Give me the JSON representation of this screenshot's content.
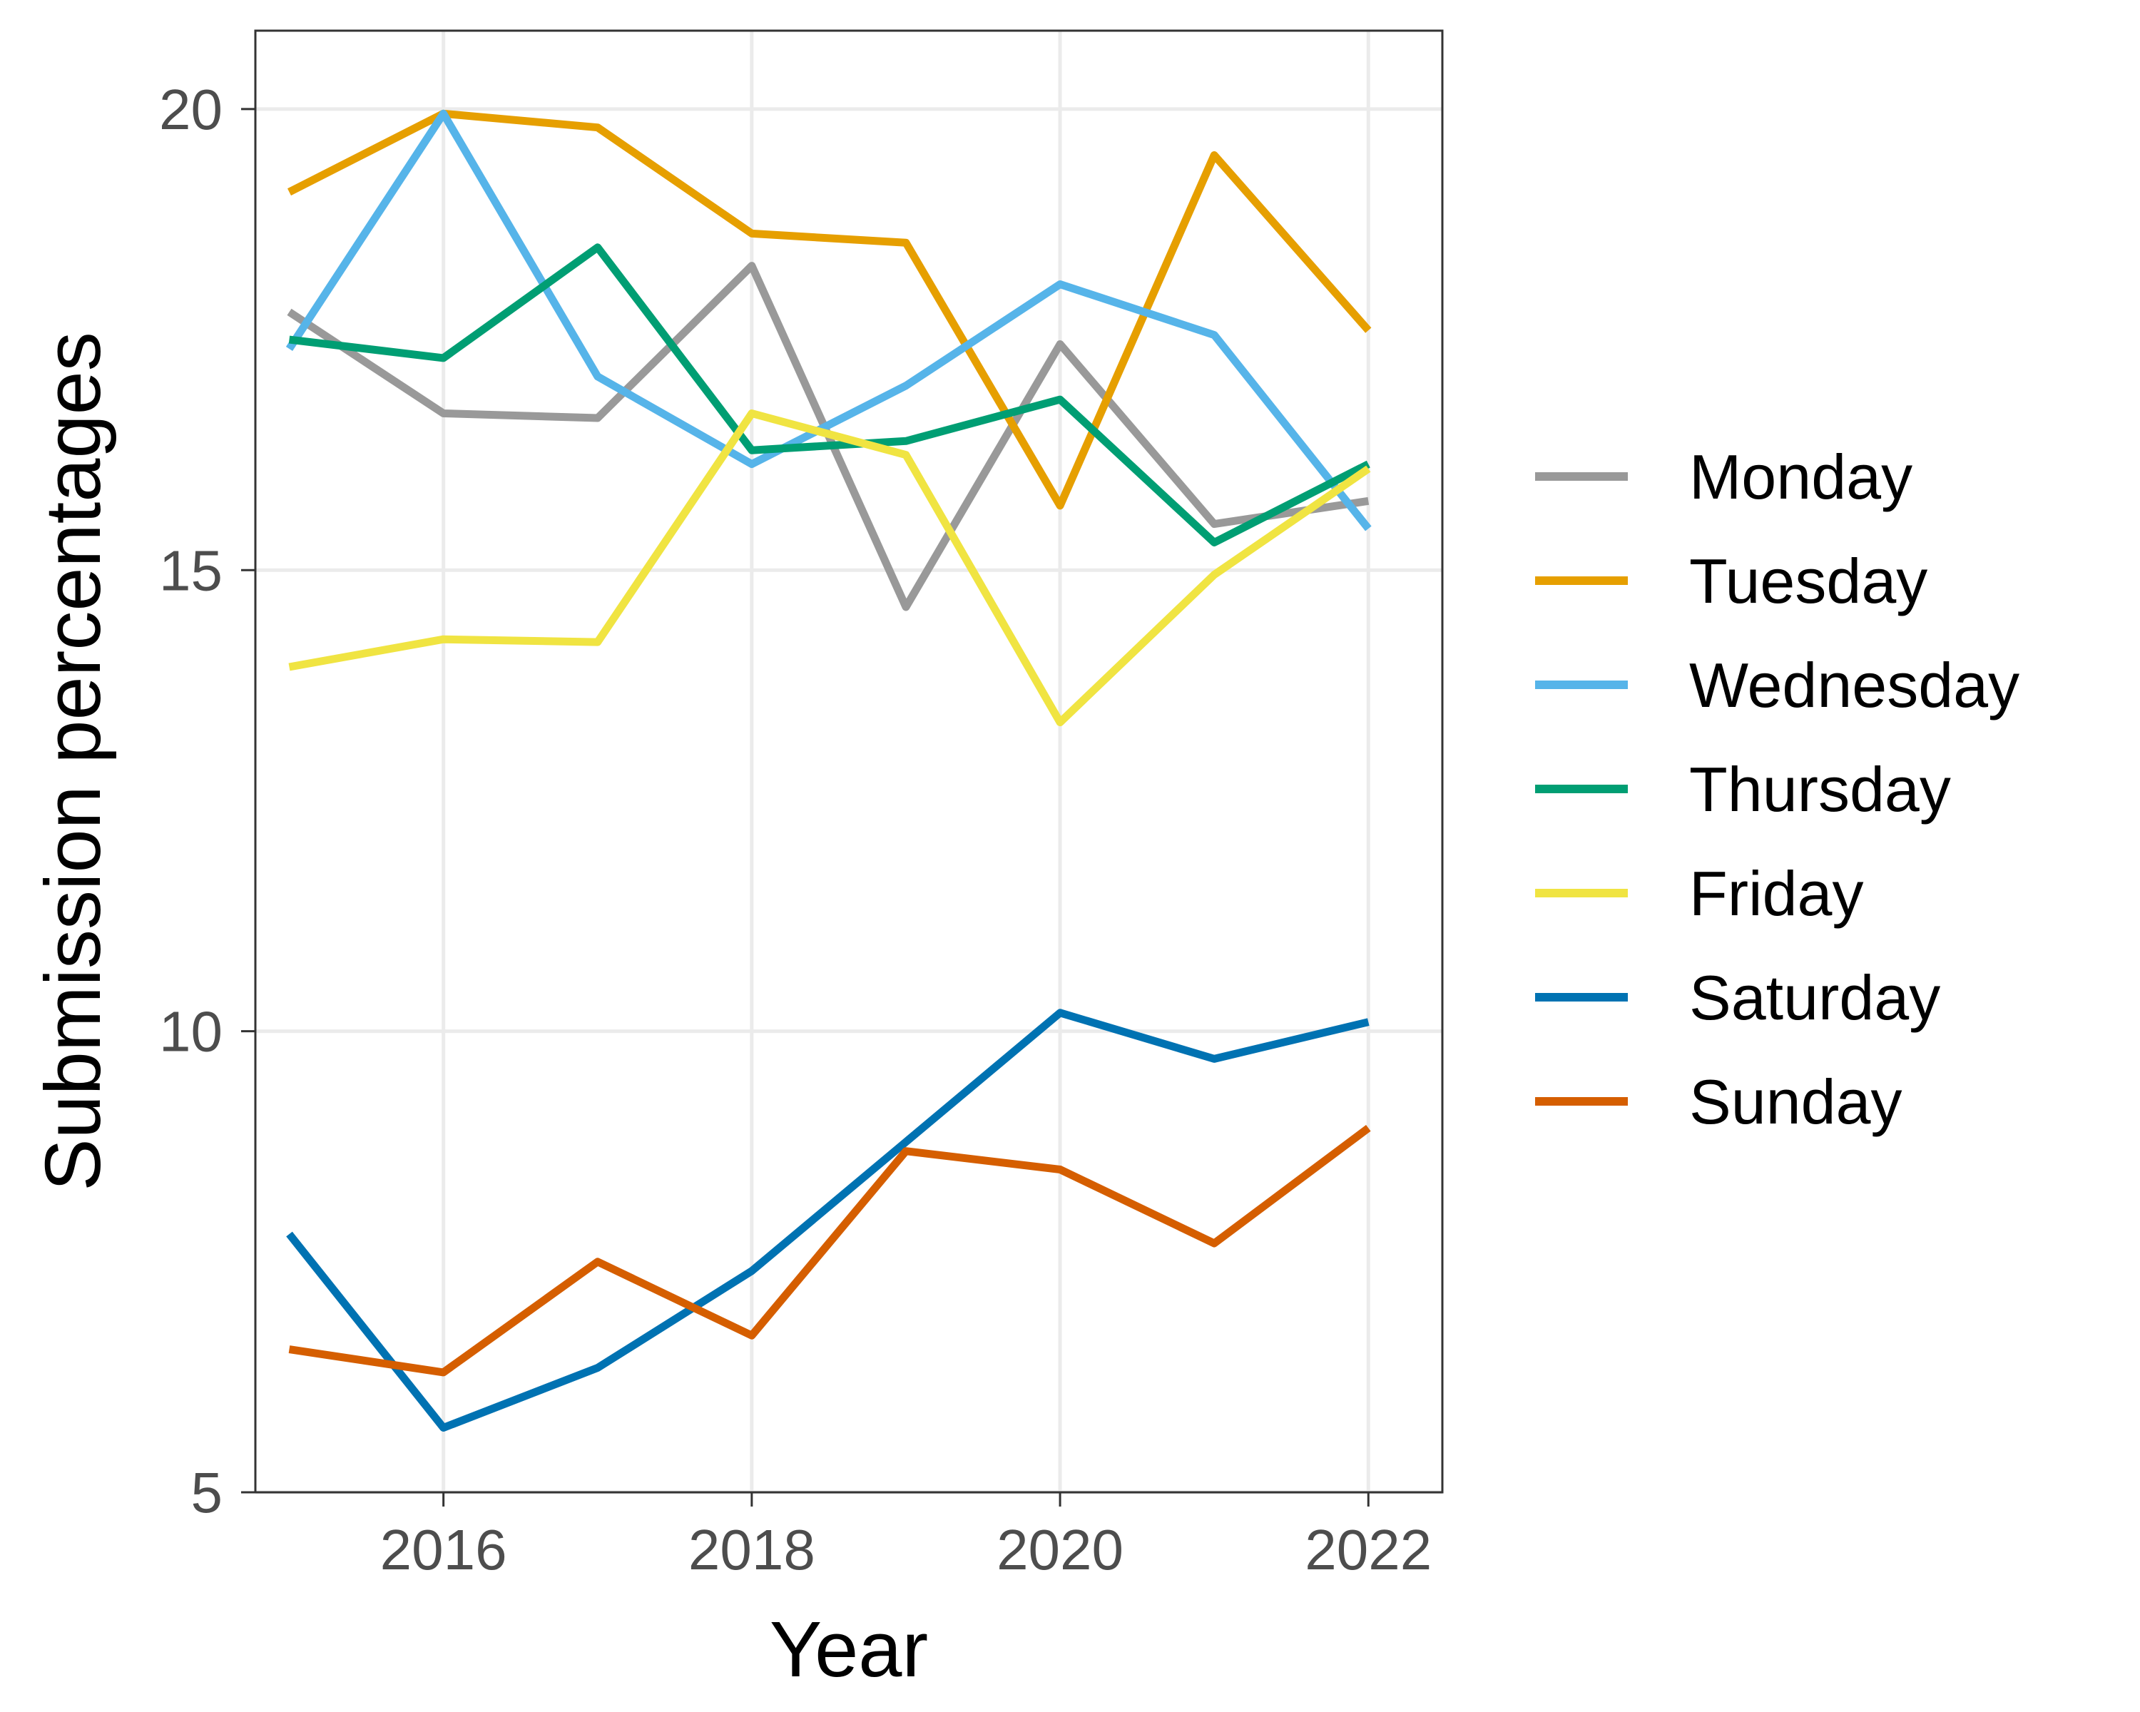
{
  "chart_data": {
    "type": "line",
    "xlabel": "Year",
    "ylabel": "Submission percentages",
    "xlim": [
      2014.78,
      2022.48
    ],
    "ylim": [
      5,
      20.85
    ],
    "x_ticks": [
      2016,
      2018,
      2020,
      2022
    ],
    "y_ticks": [
      5,
      10,
      15,
      20
    ],
    "grid": true,
    "legend_position": "right",
    "x": [
      2015,
      2016,
      2017,
      2018,
      2019,
      2020,
      2021,
      2022
    ],
    "series": [
      {
        "name": "Monday",
        "color": "#999999",
        "values": [
          17.8,
          16.7,
          16.65,
          18.3,
          14.6,
          17.45,
          15.5,
          15.75
        ]
      },
      {
        "name": "Tuesday",
        "color": "#E69F00",
        "values": [
          19.1,
          19.95,
          19.8,
          18.65,
          18.55,
          15.7,
          19.5,
          17.6
        ]
      },
      {
        "name": "Wednesday",
        "color": "#56B4E9",
        "values": [
          17.4,
          19.95,
          17.1,
          16.15,
          17.0,
          18.1,
          17.55,
          15.45
        ]
      },
      {
        "name": "Thursday",
        "color": "#009E73",
        "values": [
          17.5,
          17.3,
          18.5,
          16.3,
          16.4,
          16.85,
          15.3,
          16.15
        ]
      },
      {
        "name": "Friday",
        "color": "#F0E442",
        "values": [
          13.95,
          14.25,
          14.22,
          16.7,
          16.25,
          13.35,
          14.95,
          16.1
        ]
      },
      {
        "name": "Saturday",
        "color": "#0072B2",
        "values": [
          7.8,
          5.7,
          6.35,
          7.4,
          8.8,
          10.2,
          9.7,
          10.1
        ]
      },
      {
        "name": "Sunday",
        "color": "#D55E00",
        "values": [
          6.55,
          6.3,
          7.5,
          6.7,
          8.7,
          8.5,
          7.7,
          8.95
        ]
      }
    ]
  }
}
